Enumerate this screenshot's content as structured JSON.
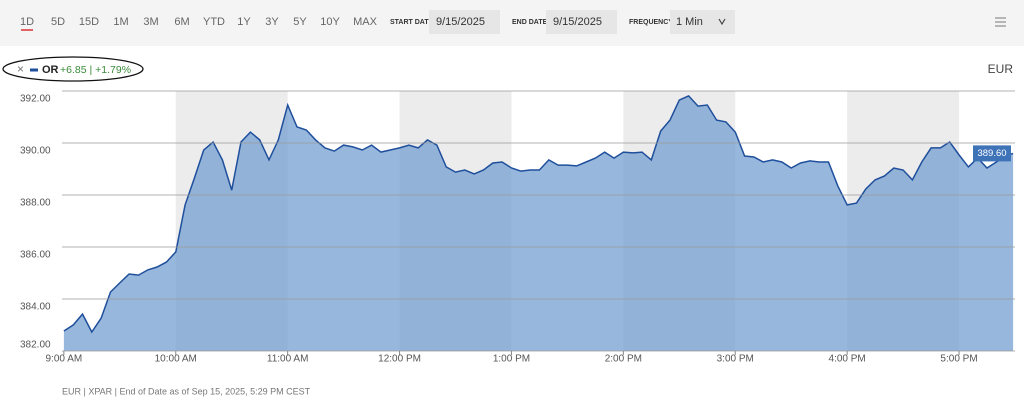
{
  "toolbar": {
    "ranges": [
      "1D",
      "5D",
      "15D",
      "1M",
      "3M",
      "6M",
      "YTD",
      "1Y",
      "3Y",
      "5Y",
      "10Y",
      "MAX"
    ],
    "start_label": "START DATE",
    "start_date": "9/15/2025",
    "end_label": "END DATE",
    "end_date": "9/15/2025",
    "frequency_label": "FREQUENCY",
    "frequency": "1 Min"
  },
  "legend": {
    "close": "×",
    "change": "+6.85 | +1.79%"
  },
  "footer": "EUR | XPAR | End of Date as of Sep 15, 2025, 5:29 PM CEST",
  "chart_data": {
    "type": "area",
    "currency": "EUR",
    "x": [
      540,
      545,
      550,
      555,
      560,
      565,
      570,
      575,
      580,
      585,
      590,
      595,
      600,
      605,
      610,
      615,
      620,
      625,
      630,
      635,
      640,
      645,
      650,
      655,
      660,
      665,
      670,
      675,
      680,
      685,
      690,
      695,
      700,
      705,
      710,
      715,
      720,
      725,
      730,
      735,
      740,
      745,
      750,
      755,
      760,
      765,
      770,
      775,
      780,
      785,
      790,
      795,
      800,
      805,
      810,
      815,
      820,
      825,
      830,
      835,
      840,
      845,
      850,
      855,
      860,
      865,
      870,
      875,
      880,
      885,
      890,
      895,
      900,
      905,
      910,
      915,
      920,
      925,
      930,
      935,
      940,
      945,
      950,
      955,
      960,
      965,
      970,
      975,
      980,
      985,
      990,
      995,
      1000,
      1005,
      1010,
      1015,
      1020,
      1025,
      1030,
      1035,
      1040,
      1045,
      1049
    ],
    "series": [
      {
        "name": "OR",
        "color": "#1f4f9c",
        "fill": "#6f9ccf",
        "values": [
          382.77,
          383.0,
          383.42,
          382.73,
          383.27,
          384.27,
          384.62,
          384.96,
          384.92,
          385.12,
          385.23,
          385.42,
          385.81,
          387.62,
          388.65,
          389.73,
          390.04,
          389.35,
          388.19,
          390.04,
          390.42,
          390.12,
          389.35,
          390.12,
          391.46,
          390.62,
          390.5,
          390.12,
          389.81,
          389.69,
          389.92,
          389.85,
          389.73,
          389.92,
          389.65,
          389.73,
          389.81,
          389.92,
          389.81,
          390.12,
          389.92,
          389.08,
          388.88,
          388.96,
          388.81,
          388.96,
          389.23,
          389.27,
          389.04,
          388.92,
          388.96,
          388.96,
          389.35,
          389.15,
          389.15,
          389.12,
          389.27,
          389.42,
          389.65,
          389.42,
          389.65,
          389.62,
          389.65,
          389.35,
          390.46,
          390.88,
          391.65,
          391.81,
          391.42,
          391.46,
          390.88,
          390.81,
          390.42,
          389.5,
          389.46,
          389.27,
          389.35,
          389.27,
          389.04,
          389.23,
          389.31,
          389.27,
          389.27,
          388.35,
          387.62,
          387.69,
          388.23,
          388.58,
          388.73,
          389.04,
          388.96,
          388.58,
          389.27,
          389.81,
          389.81,
          390.04,
          389.54,
          389.08,
          389.42,
          389.04,
          389.27,
          389.5,
          389.6
        ]
      }
    ],
    "last_price": {
      "value": 389.6,
      "label": "389.60"
    },
    "xlim": [
      539,
      1050
    ],
    "xticks": [
      {
        "value": 540,
        "label": "9:00 AM"
      },
      {
        "value": 600,
        "label": "10:00 AM"
      },
      {
        "value": 660,
        "label": "11:00 AM"
      },
      {
        "value": 720,
        "label": "12:00 PM"
      },
      {
        "value": 780,
        "label": "1:00 PM"
      },
      {
        "value": 840,
        "label": "2:00 PM"
      },
      {
        "value": 900,
        "label": "3:00 PM"
      },
      {
        "value": 960,
        "label": "4:00 PM"
      },
      {
        "value": 1020,
        "label": "5:00 PM"
      }
    ],
    "ylim": [
      382,
      392
    ],
    "yticks": [
      {
        "value": 382,
        "label": "382.00"
      },
      {
        "value": 384,
        "label": "384.00"
      },
      {
        "value": 386,
        "label": "386.00"
      },
      {
        "value": 388,
        "label": "388.00"
      },
      {
        "value": 390,
        "label": "390.00"
      },
      {
        "value": 392,
        "label": "392.00"
      }
    ],
    "grid": true,
    "band_color": "#ececec"
  }
}
